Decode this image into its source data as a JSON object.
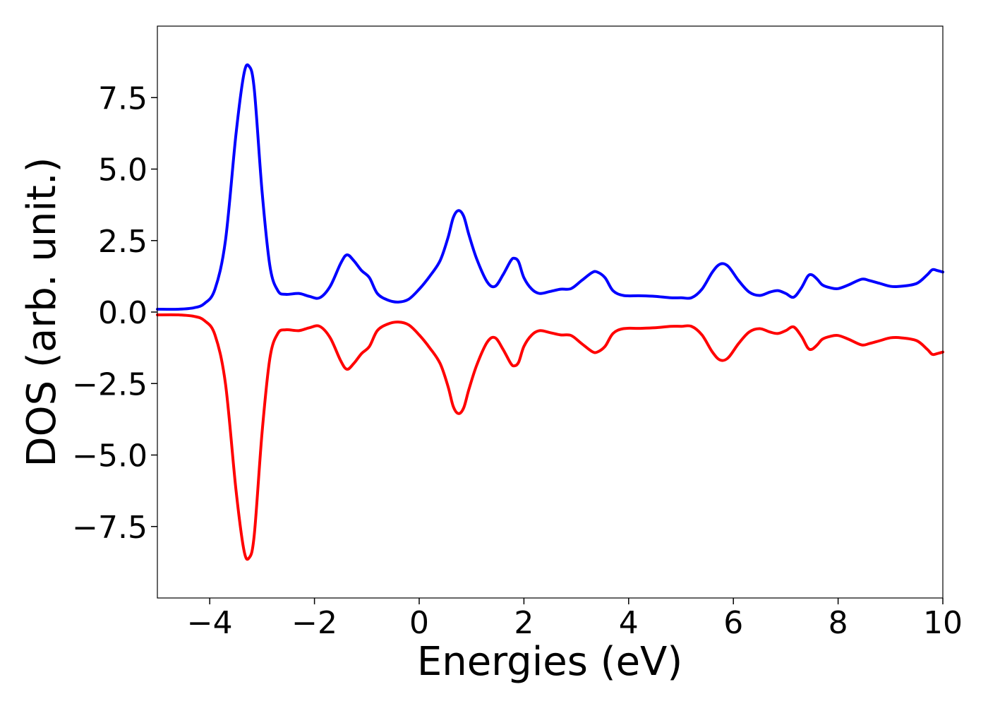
{
  "chart_data": {
    "type": "line",
    "title": "",
    "xlabel": "Energies (eV)",
    "ylabel": "DOS (arb. unit.)",
    "xlim": [
      -5,
      10
    ],
    "ylim": [
      -10,
      10
    ],
    "grid": false,
    "legend": "none",
    "x_ticks": [
      -4,
      -2,
      0,
      2,
      4,
      6,
      8,
      10
    ],
    "x_tick_labels": [
      "−4",
      "−2",
      "0",
      "2",
      "4",
      "6",
      "8",
      "10"
    ],
    "y_ticks": [
      7.5,
      5.0,
      2.5,
      0.0,
      -2.5,
      -5.0,
      -7.5
    ],
    "y_tick_labels": [
      "7.5",
      "5.0",
      "2.5",
      "0.0",
      "−2.5",
      "−5.0",
      "−7.5"
    ],
    "series": [
      {
        "color": "#0000ff",
        "x": [
          -5.0,
          -4.6,
          -4.3,
          -4.1,
          -3.9,
          -3.7,
          -3.5,
          -3.35,
          -3.25,
          -3.15,
          -3.0,
          -2.85,
          -2.7,
          -2.55,
          -2.3,
          -2.1,
          -1.9,
          -1.7,
          -1.5,
          -1.38,
          -1.25,
          -1.1,
          -0.95,
          -0.8,
          -0.6,
          -0.4,
          -0.2,
          0.0,
          0.2,
          0.4,
          0.55,
          0.65,
          0.75,
          0.85,
          0.95,
          1.1,
          1.3,
          1.45,
          1.6,
          1.75,
          1.82,
          1.9,
          2.0,
          2.15,
          2.3,
          2.5,
          2.7,
          2.9,
          3.1,
          3.3,
          3.4,
          3.55,
          3.7,
          3.9,
          4.2,
          4.5,
          4.8,
          5.0,
          5.2,
          5.4,
          5.6,
          5.75,
          5.9,
          6.1,
          6.3,
          6.5,
          6.7,
          6.85,
          7.0,
          7.15,
          7.3,
          7.42,
          7.5,
          7.6,
          7.7,
          7.85,
          8.0,
          8.2,
          8.45,
          8.6,
          8.8,
          9.0,
          9.2,
          9.5,
          9.7,
          9.8,
          9.9,
          10.0
        ],
        "y": [
          0.1,
          0.1,
          0.15,
          0.3,
          0.8,
          2.5,
          6.2,
          8.3,
          8.6,
          7.8,
          4.2,
          1.6,
          0.75,
          0.62,
          0.65,
          0.55,
          0.5,
          0.9,
          1.7,
          2.0,
          1.8,
          1.45,
          1.2,
          0.65,
          0.42,
          0.35,
          0.45,
          0.8,
          1.25,
          1.8,
          2.6,
          3.3,
          3.55,
          3.35,
          2.7,
          1.85,
          1.05,
          0.9,
          1.3,
          1.8,
          1.88,
          1.75,
          1.2,
          0.8,
          0.65,
          0.72,
          0.8,
          0.82,
          1.1,
          1.38,
          1.4,
          1.2,
          0.75,
          0.58,
          0.57,
          0.55,
          0.5,
          0.5,
          0.5,
          0.8,
          1.4,
          1.68,
          1.6,
          1.1,
          0.7,
          0.58,
          0.7,
          0.75,
          0.65,
          0.52,
          0.85,
          1.25,
          1.3,
          1.15,
          0.95,
          0.85,
          0.82,
          0.95,
          1.15,
          1.1,
          1.0,
          0.9,
          0.9,
          1.0,
          1.3,
          1.48,
          1.45,
          1.4
        ]
      },
      {
        "color": "#ff0000",
        "x": [
          -5.0,
          -4.6,
          -4.3,
          -4.1,
          -3.9,
          -3.7,
          -3.5,
          -3.35,
          -3.25,
          -3.15,
          -3.0,
          -2.85,
          -2.7,
          -2.55,
          -2.3,
          -2.1,
          -1.9,
          -1.7,
          -1.5,
          -1.38,
          -1.25,
          -1.1,
          -0.95,
          -0.8,
          -0.6,
          -0.4,
          -0.2,
          0.0,
          0.2,
          0.4,
          0.55,
          0.65,
          0.75,
          0.85,
          0.95,
          1.1,
          1.3,
          1.45,
          1.6,
          1.75,
          1.82,
          1.9,
          2.0,
          2.15,
          2.3,
          2.5,
          2.7,
          2.9,
          3.1,
          3.3,
          3.4,
          3.55,
          3.7,
          3.9,
          4.2,
          4.5,
          4.8,
          5.0,
          5.2,
          5.4,
          5.6,
          5.75,
          5.9,
          6.1,
          6.3,
          6.5,
          6.7,
          6.85,
          7.0,
          7.15,
          7.3,
          7.42,
          7.5,
          7.6,
          7.7,
          7.85,
          8.0,
          8.2,
          8.45,
          8.6,
          8.8,
          9.0,
          9.2,
          9.5,
          9.7,
          9.8,
          9.9,
          10.0
        ],
        "y": [
          -0.1,
          -0.1,
          -0.15,
          -0.3,
          -0.8,
          -2.5,
          -6.2,
          -8.3,
          -8.6,
          -7.8,
          -4.2,
          -1.6,
          -0.75,
          -0.62,
          -0.65,
          -0.55,
          -0.5,
          -0.9,
          -1.7,
          -2.0,
          -1.8,
          -1.45,
          -1.2,
          -0.65,
          -0.42,
          -0.35,
          -0.45,
          -0.8,
          -1.25,
          -1.8,
          -2.6,
          -3.3,
          -3.55,
          -3.35,
          -2.7,
          -1.85,
          -1.05,
          -0.9,
          -1.3,
          -1.8,
          -1.88,
          -1.75,
          -1.2,
          -0.8,
          -0.65,
          -0.72,
          -0.8,
          -0.82,
          -1.1,
          -1.38,
          -1.4,
          -1.2,
          -0.75,
          -0.58,
          -0.57,
          -0.55,
          -0.5,
          -0.5,
          -0.5,
          -0.8,
          -1.4,
          -1.68,
          -1.6,
          -1.1,
          -0.7,
          -0.58,
          -0.7,
          -0.75,
          -0.65,
          -0.52,
          -0.85,
          -1.25,
          -1.3,
          -1.15,
          -0.95,
          -0.85,
          -0.82,
          -0.95,
          -1.15,
          -1.1,
          -1.0,
          -0.9,
          -0.9,
          -1.0,
          -1.3,
          -1.48,
          -1.45,
          -1.4
        ]
      }
    ]
  }
}
